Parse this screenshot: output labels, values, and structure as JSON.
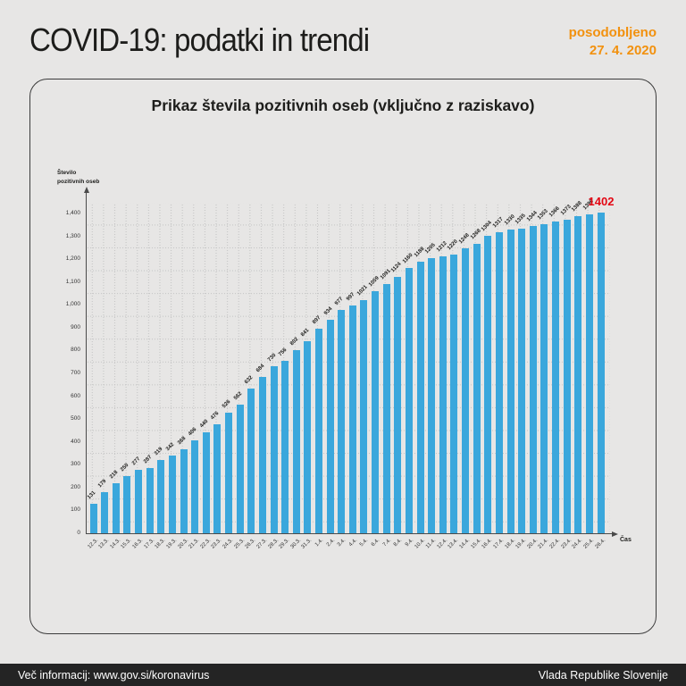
{
  "header": {
    "title": "COVID-19: podatki in trendi",
    "updated_label": "posodobljeno",
    "updated_date": "27. 4. 2020"
  },
  "card": {
    "title": "Prikaz števila pozitivnih oseb (vključno z raziskavo)"
  },
  "chart_data": {
    "type": "bar",
    "title": "Prikaz števila pozitivnih oseb (vključno z raziskavo)",
    "xlabel": "Čas",
    "ylabel": "Število\npozitivnih oseb",
    "ylim": [
      0,
      1400
    ],
    "y_ticks": [
      0,
      100,
      200,
      300,
      400,
      500,
      600,
      700,
      800,
      900,
      1000,
      1100,
      1200,
      1300,
      1400
    ],
    "y_tick_labels": [
      "0",
      "100",
      "200",
      "300",
      "400",
      "500",
      "600",
      "700",
      "800",
      "900",
      "1,000",
      "1,100",
      "1,200",
      "1,300",
      "1,400"
    ],
    "grid": "dotted",
    "legend": "none",
    "categories": [
      "12.3.",
      "13.3.",
      "14.3.",
      "15.3.",
      "16.3.",
      "17.3.",
      "18.3.",
      "19.3.",
      "20.3.",
      "21.3.",
      "22.3.",
      "23.3.",
      "24.3.",
      "25.3.",
      "26.3.",
      "27.3.",
      "28.3.",
      "29.3.",
      "30.3.",
      "31.3.",
      "1.4.",
      "2.4.",
      "3.4.",
      "4.4.",
      "5.4.",
      "6.4.",
      "7.4.",
      "8.4.",
      "9.4.",
      "10.4.",
      "11.4.",
      "12.4.",
      "13.4.",
      "14.4.",
      "15.4.",
      "16.4.",
      "17.4.",
      "18.4.",
      "19.4.",
      "20.4.",
      "21.4.",
      "22.4.",
      "23.4.",
      "24.4.",
      "25.4.",
      "26.4."
    ],
    "values": [
      131,
      179,
      218,
      250,
      277,
      287,
      319,
      342,
      368,
      406,
      440,
      476,
      526,
      562,
      632,
      684,
      730,
      756,
      802,
      841,
      897,
      934,
      977,
      997,
      1021,
      1059,
      1091,
      1124,
      1160,
      1188,
      1205,
      1212,
      1220,
      1248,
      1268,
      1304,
      1317,
      1330,
      1335,
      1344,
      1353,
      1366,
      1373,
      1388,
      1396,
      1402
    ],
    "last_value": "1402",
    "bar_color": "#3aa7dc",
    "highlight_color": "#e30613",
    "label_color": "#1d1d1b"
  },
  "footer": {
    "left": "Več informacij: www.gov.si/koronavirus",
    "right": "Vlada Republike Slovenije"
  }
}
